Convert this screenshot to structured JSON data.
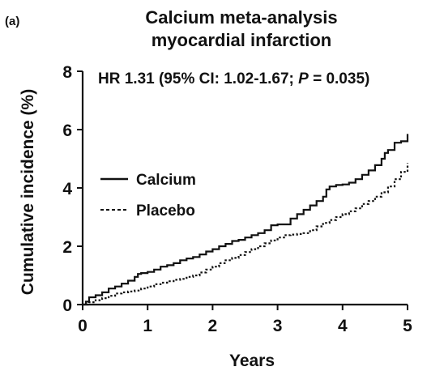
{
  "panel_label": "(a)",
  "chart_data": {
    "type": "line",
    "title": [
      "Calcium meta-analysis",
      "myocardial infarction"
    ],
    "annotation": {
      "prefix": "HR 1.31 (95% CI: 1.02-1.67; ",
      "p_label": "P",
      "suffix": " = 0.035)"
    },
    "xlabel": "Years",
    "ylabel": "Cumulative incidence (%)",
    "xlim": [
      0,
      5
    ],
    "ylim": [
      0,
      8
    ],
    "xticks": [
      "0",
      "1",
      "2",
      "3",
      "4",
      "5"
    ],
    "yticks": [
      "0",
      "2",
      "4",
      "6",
      "8"
    ],
    "grid": false,
    "legend_position": "middle-left",
    "series": [
      {
        "name": "Calcium",
        "style": "solid",
        "step": true,
        "x": [
          0,
          0.05,
          0.1,
          0.2,
          0.3,
          0.4,
          0.5,
          0.6,
          0.7,
          0.8,
          0.85,
          0.9,
          1.0,
          1.1,
          1.2,
          1.3,
          1.4,
          1.5,
          1.6,
          1.7,
          1.8,
          1.9,
          2.0,
          2.1,
          2.2,
          2.3,
          2.4,
          2.5,
          2.6,
          2.7,
          2.8,
          2.9,
          3.0,
          3.2,
          3.3,
          3.4,
          3.5,
          3.6,
          3.7,
          3.75,
          3.8,
          3.9,
          4.0,
          4.1,
          4.2,
          4.3,
          4.4,
          4.5,
          4.6,
          4.65,
          4.7,
          4.8,
          4.9,
          4.98,
          5.0
        ],
        "y": [
          0,
          0.1,
          0.25,
          0.32,
          0.42,
          0.55,
          0.62,
          0.72,
          0.82,
          0.95,
          1.05,
          1.08,
          1.12,
          1.2,
          1.3,
          1.35,
          1.42,
          1.52,
          1.58,
          1.63,
          1.72,
          1.82,
          1.9,
          2.0,
          2.08,
          2.18,
          2.22,
          2.3,
          2.38,
          2.45,
          2.55,
          2.72,
          2.75,
          2.95,
          3.1,
          3.25,
          3.4,
          3.55,
          3.7,
          3.95,
          4.05,
          4.1,
          4.12,
          4.18,
          4.3,
          4.45,
          4.6,
          4.78,
          5.0,
          5.2,
          5.3,
          5.55,
          5.6,
          5.6,
          5.85
        ]
      },
      {
        "name": "Placebo",
        "style": "dashed",
        "step": true,
        "x": [
          0,
          0.1,
          0.2,
          0.3,
          0.4,
          0.5,
          0.6,
          0.7,
          0.8,
          0.9,
          1.0,
          1.1,
          1.2,
          1.3,
          1.4,
          1.5,
          1.6,
          1.7,
          1.8,
          1.9,
          2.0,
          2.1,
          2.2,
          2.3,
          2.4,
          2.5,
          2.6,
          2.7,
          2.8,
          2.9,
          3.0,
          3.1,
          3.2,
          3.3,
          3.4,
          3.5,
          3.6,
          3.7,
          3.8,
          3.9,
          4.0,
          4.1,
          4.2,
          4.3,
          4.4,
          4.5,
          4.6,
          4.7,
          4.8,
          4.9,
          5.0
        ],
        "y": [
          0,
          0.08,
          0.15,
          0.22,
          0.3,
          0.38,
          0.42,
          0.45,
          0.48,
          0.55,
          0.62,
          0.7,
          0.75,
          0.8,
          0.85,
          0.88,
          0.95,
          1.0,
          1.1,
          1.2,
          1.3,
          1.42,
          1.52,
          1.6,
          1.7,
          1.8,
          1.9,
          2.0,
          2.1,
          2.2,
          2.3,
          2.38,
          2.4,
          2.42,
          2.45,
          2.55,
          2.68,
          2.8,
          2.9,
          3.0,
          3.1,
          3.2,
          3.3,
          3.45,
          3.55,
          3.7,
          3.85,
          4.05,
          4.3,
          4.55,
          4.85
        ]
      }
    ]
  }
}
